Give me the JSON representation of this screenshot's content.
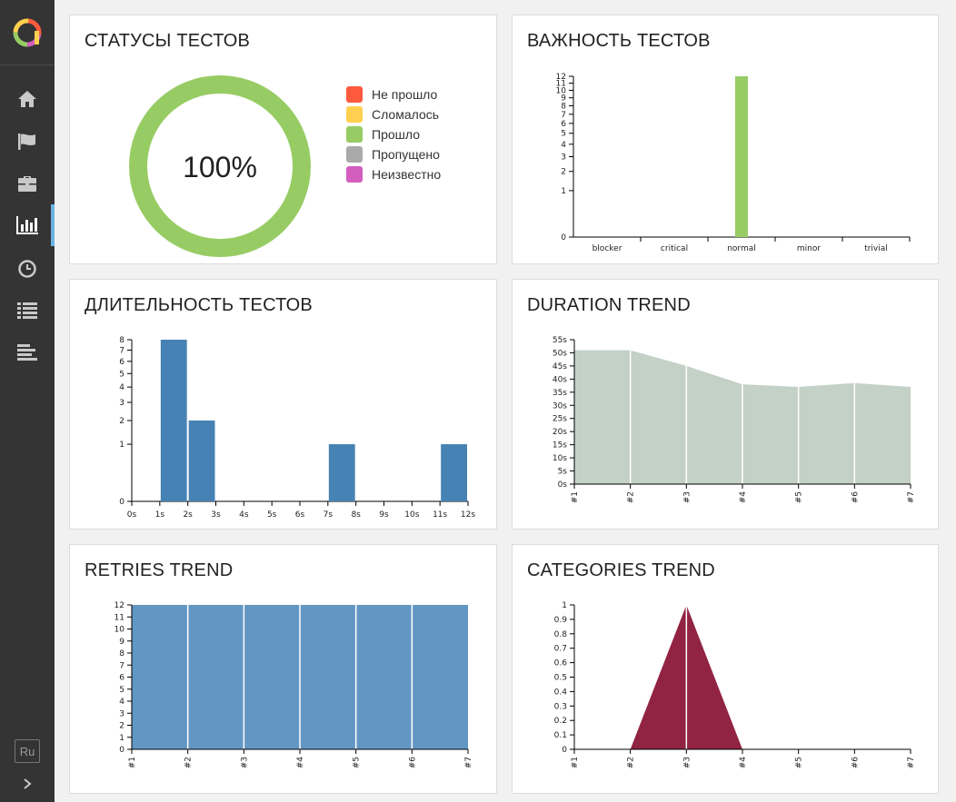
{
  "sidebar": {
    "items": [
      {
        "icon": "home-icon"
      },
      {
        "icon": "flag-icon"
      },
      {
        "icon": "briefcase-icon"
      },
      {
        "icon": "bar-chart-icon",
        "active": true
      },
      {
        "icon": "clock-icon"
      },
      {
        "icon": "list-icon"
      },
      {
        "icon": "timeline-icon"
      }
    ],
    "language": "Ru",
    "colors": {
      "bg": "#343434",
      "active_marker": "#6cb4e4"
    }
  },
  "widgets": {
    "statuses": {
      "title": "СТАТУСЫ ТЕСТОВ",
      "center_label": "100%",
      "legend": [
        {
          "label": "Не прошло",
          "color": "#fd5a3e"
        },
        {
          "label": "Сломалось",
          "color": "#ffd050"
        },
        {
          "label": "Прошло",
          "color": "#97cc64"
        },
        {
          "label": "Пропущено",
          "color": "#aaaaaa"
        },
        {
          "label": "Неизвестно",
          "color": "#d35ebe"
        }
      ]
    },
    "severity": {
      "title": "ВАЖНОСТЬ ТЕСТОВ"
    },
    "duration": {
      "title": "ДЛИТЕЛЬНОСТЬ ТЕСТОВ"
    },
    "duration_trend": {
      "title": "DURATION TREND"
    },
    "retries_trend": {
      "title": "RETRIES TREND"
    },
    "categories_trend": {
      "title": "CATEGORIES TREND"
    }
  },
  "chart_data": [
    {
      "id": "statuses",
      "type": "pie",
      "categories": [
        "Не прошло",
        "Сломалось",
        "Прошло",
        "Пропущено",
        "Неизвестно"
      ],
      "values": [
        0,
        0,
        12,
        0,
        0
      ],
      "colors": [
        "#fd5a3e",
        "#ffd050",
        "#97cc64",
        "#aaaaaa",
        "#d35ebe"
      ]
    },
    {
      "id": "severity",
      "type": "bar",
      "categories": [
        "blocker",
        "critical",
        "normal",
        "minor",
        "trivial"
      ],
      "values": [
        0,
        0,
        12,
        0,
        0
      ],
      "yticks": [
        0,
        1,
        2,
        3,
        4,
        5,
        6,
        7,
        8,
        9,
        10,
        11,
        12
      ],
      "ylim": [
        0,
        12
      ],
      "yscale": "sqrt",
      "color": "#97cc64"
    },
    {
      "id": "duration",
      "type": "bar",
      "xticks": [
        "0s",
        "1s",
        "2s",
        "3s",
        "4s",
        "5s",
        "6s",
        "7s",
        "8s",
        "9s",
        "10s",
        "11s",
        "12s"
      ],
      "bins": [
        {
          "from": 1,
          "to": 2,
          "value": 8
        },
        {
          "from": 2,
          "to": 3,
          "value": 2
        },
        {
          "from": 7,
          "to": 8,
          "value": 1
        },
        {
          "from": 11,
          "to": 12,
          "value": 1
        }
      ],
      "yticks": [
        0,
        1,
        2,
        3,
        4,
        5,
        6,
        7,
        8
      ],
      "ylim": [
        0,
        8
      ],
      "yscale": "sqrt",
      "color": "#4682b4"
    },
    {
      "id": "duration_trend",
      "type": "area",
      "x": [
        "#1",
        "#2",
        "#3",
        "#4",
        "#5",
        "#6",
        "#7"
      ],
      "values": [
        51,
        51,
        45,
        38,
        37,
        38.5,
        37
      ],
      "yticks": [
        "0s",
        "5s",
        "10s",
        "15s",
        "20s",
        "25s",
        "30s",
        "35s",
        "40s",
        "45s",
        "50s",
        "55s"
      ],
      "ylim": [
        0,
        55
      ],
      "color": "#c3d1c7"
    },
    {
      "id": "retries_trend",
      "type": "area",
      "x": [
        "#1",
        "#2",
        "#3",
        "#4",
        "#5",
        "#6",
        "#7"
      ],
      "values": [
        12,
        12,
        12,
        12,
        12,
        12,
        12
      ],
      "yticks": [
        0,
        1,
        2,
        3,
        4,
        5,
        6,
        7,
        8,
        9,
        10,
        11,
        12
      ],
      "ylim": [
        0,
        12
      ],
      "color": "#6397c3"
    },
    {
      "id": "categories_trend",
      "type": "area",
      "x": [
        "#1",
        "#2",
        "#3",
        "#4",
        "#5",
        "#6",
        "#7"
      ],
      "values": [
        0,
        0,
        1,
        0,
        0,
        0,
        0
      ],
      "yticks": [
        "0",
        "0.1",
        "0.2",
        "0.3",
        "0.4",
        "0.5",
        "0.6",
        "0.7",
        "0.8",
        "0.9",
        "1"
      ],
      "ylim": [
        0,
        1
      ],
      "color": "#912343"
    }
  ]
}
